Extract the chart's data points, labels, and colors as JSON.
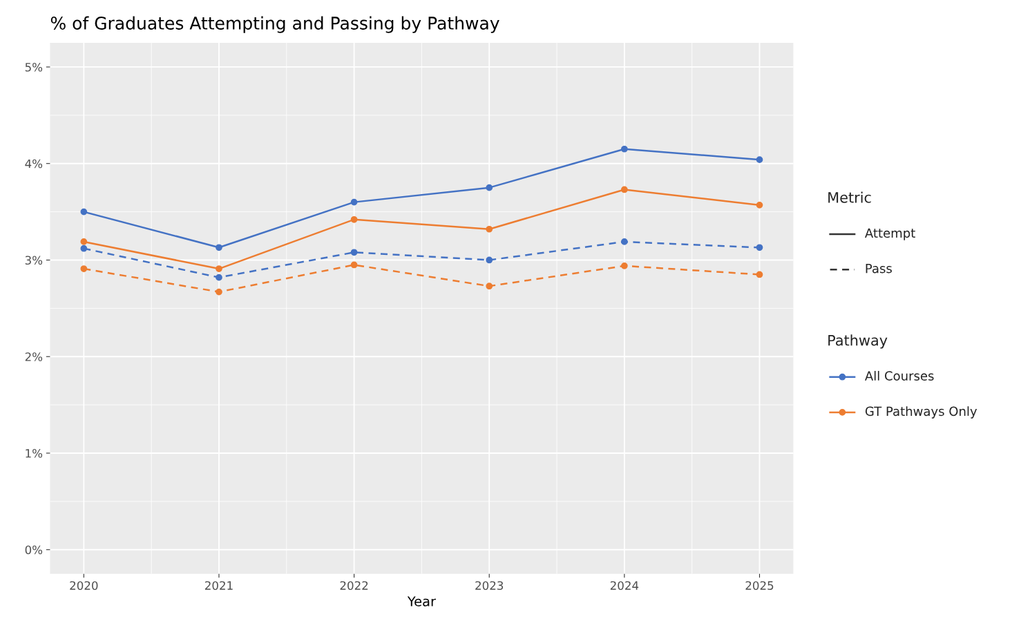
{
  "chart_data": {
    "type": "line",
    "title": "% of Graduates Attempting and Passing by Pathway",
    "xlabel": "Year",
    "x": [
      2020,
      2021,
      2022,
      2023,
      2024,
      2025
    ],
    "xlim": [
      2019.75,
      2025.25
    ],
    "xticks": [
      2020,
      2021,
      2022,
      2023,
      2024,
      2025
    ],
    "ylim": [
      -0.25,
      5.25
    ],
    "yticks": [
      {
        "value": 0,
        "label": "0%"
      },
      {
        "value": 1,
        "label": "1%"
      },
      {
        "value": 2,
        "label": "2%"
      },
      {
        "value": 3,
        "label": "3%"
      },
      {
        "value": 4,
        "label": "4%"
      },
      {
        "value": 5,
        "label": "5%"
      }
    ],
    "grid": true,
    "marker": "circle",
    "annotations": [
      "Metric",
      "Attempt",
      "Pass",
      "Pathway",
      "All Courses",
      "GT Pathways Only"
    ],
    "series": [
      {
        "color": "#4472c4",
        "line_style": "solid",
        "values": [
          3.5,
          3.13,
          3.6,
          3.75,
          4.15,
          4.04
        ]
      },
      {
        "color": "#ed7d31",
        "line_style": "solid",
        "values": [
          3.19,
          2.91,
          3.42,
          3.32,
          3.73,
          3.57
        ]
      },
      {
        "color": "#4472c4",
        "line_style": "dashed",
        "values": [
          3.12,
          2.82,
          3.08,
          3.0,
          3.19,
          3.13
        ]
      },
      {
        "color": "#ed7d31",
        "line_style": "dashed",
        "values": [
          2.91,
          2.67,
          2.95,
          2.73,
          2.94,
          2.85
        ]
      }
    ]
  }
}
